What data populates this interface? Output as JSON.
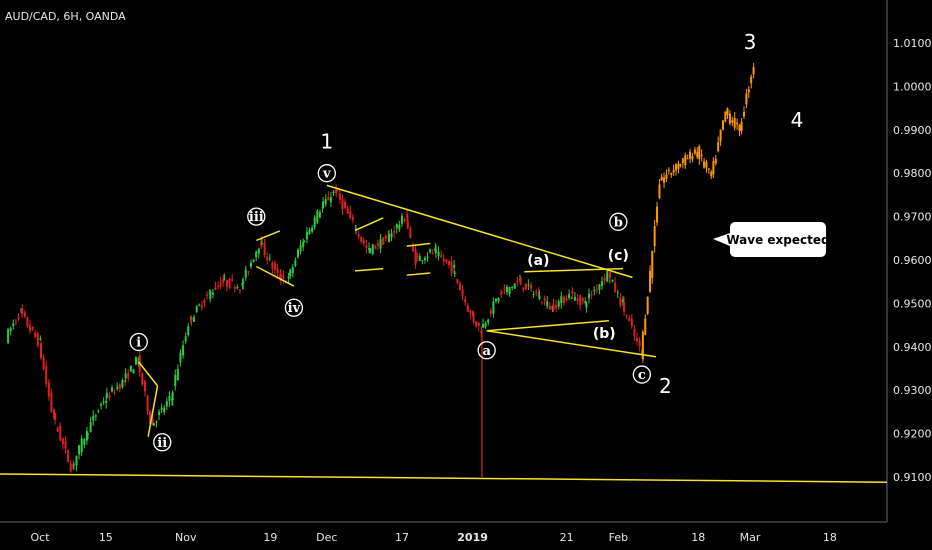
{
  "title": "AUD/CAD, 6H, OANDA",
  "callout": "Wave expected",
  "colors": {
    "background": "#000000",
    "up": "#2ecc40",
    "down": "#e02020",
    "projection": "#ff9900",
    "trendline": "#f5e22a",
    "text": "#e6e6e6"
  },
  "chart_data": {
    "type": "candlestick",
    "title": "AUD/CAD, 6H, OANDA",
    "xlabel": "",
    "ylabel": "",
    "ylim": [
      0.9075,
      1.0145
    ],
    "y_ticks": [
      "1.01000",
      "1.00000",
      "0.99000",
      "0.98000",
      "0.97000",
      "0.96000",
      "0.95000",
      "0.94000",
      "0.93000",
      "0.92000",
      "0.91000"
    ],
    "x_ticks": [
      "Oct",
      "15",
      "Nov",
      "19",
      "Dec",
      "17",
      "2019",
      "21",
      "Feb",
      "18",
      "Mar",
      "18"
    ],
    "grid": false,
    "price_path": [
      [
        "2018-09-24",
        0.942
      ],
      [
        "2018-09-27",
        0.948
      ],
      [
        "2018-10-01",
        0.941
      ],
      [
        "2018-10-04",
        0.924
      ],
      [
        "2018-10-08",
        0.912
      ],
      [
        "2018-10-11",
        0.92
      ],
      [
        "2018-10-15",
        0.928
      ],
      [
        "2018-10-19",
        0.932
      ],
      [
        "2018-10-22",
        0.937
      ],
      [
        "2018-10-25",
        0.922
      ],
      [
        "2018-10-29",
        0.928
      ],
      [
        "2018-11-02",
        0.946
      ],
      [
        "2018-11-06",
        0.952
      ],
      [
        "2018-11-09",
        0.955
      ],
      [
        "2018-11-13",
        0.954
      ],
      [
        "2018-11-17",
        0.964
      ],
      [
        "2018-11-21",
        0.956
      ],
      [
        "2018-11-23",
        0.9555
      ],
      [
        "2018-11-26",
        0.964
      ],
      [
        "2018-11-30",
        0.972
      ],
      [
        "2018-12-03",
        0.976
      ],
      [
        "2018-12-07",
        0.968
      ],
      [
        "2018-12-10",
        0.962
      ],
      [
        "2018-12-14",
        0.965
      ],
      [
        "2018-12-18",
        0.97
      ],
      [
        "2018-12-20",
        0.96
      ],
      [
        "2018-12-24",
        0.962
      ],
      [
        "2018-12-28",
        0.958
      ],
      [
        "2019-01-01",
        0.947
      ],
      [
        "2019-01-03",
        0.944
      ],
      [
        "2019-01-07",
        0.952
      ],
      [
        "2019-01-11",
        0.955
      ],
      [
        "2019-01-15",
        0.952
      ],
      [
        "2019-01-18",
        0.949
      ],
      [
        "2019-01-22",
        0.952
      ],
      [
        "2019-01-25",
        0.95
      ],
      [
        "2019-01-30",
        0.957
      ],
      [
        "2019-02-02",
        0.95
      ],
      [
        "2019-02-06",
        0.939
      ]
    ],
    "projection_path": [
      [
        "2019-02-06",
        0.938
      ],
      [
        "2019-02-08",
        0.957
      ],
      [
        "2019-02-10",
        0.978
      ],
      [
        "2019-02-14",
        0.982
      ],
      [
        "2019-02-18",
        0.985
      ],
      [
        "2019-02-21",
        0.979
      ],
      [
        "2019-02-24",
        0.994
      ],
      [
        "2019-02-27",
        0.99
      ],
      [
        "2019-03-02",
        1.005
      ]
    ],
    "spike": {
      "date": "2019-01-03",
      "low": 0.91
    },
    "support_line": {
      "from": [
        "2018-09-24",
        0.9107
      ],
      "to": [
        "2019-03-31",
        0.9088
      ]
    },
    "wave_labels": [
      {
        "text": "1",
        "date": "2018-12-01",
        "price": 0.9857,
        "style": "big"
      },
      {
        "text": "2",
        "date": "2019-02-11",
        "price": 0.9293,
        "style": "big"
      },
      {
        "text": "3",
        "date": "2019-03-01",
        "price": 1.0086,
        "style": "big"
      },
      {
        "text": "4",
        "date": "2019-03-11",
        "price": 0.9906,
        "style": "big"
      }
    ],
    "circled_labels": [
      {
        "text": "i",
        "date": "2018-10-22",
        "price": 0.9411
      },
      {
        "text": "ii",
        "date": "2018-10-27",
        "price": 0.918
      },
      {
        "text": "iii",
        "date": "2018-11-16",
        "price": 0.97
      },
      {
        "text": "iv",
        "date": "2018-11-24",
        "price": 0.949
      },
      {
        "text": "v",
        "date": "2018-12-01",
        "price": 0.98
      },
      {
        "text": "a",
        "date": "2019-01-04",
        "price": 0.9392
      },
      {
        "text": "b",
        "date": "2019-02-01",
        "price": 0.9688
      },
      {
        "text": "c",
        "date": "2019-02-06",
        "price": 0.9336
      }
    ],
    "paren_labels": [
      {
        "text": "(a)",
        "date": "2019-01-15",
        "price": 0.9589
      },
      {
        "text": "(c)",
        "date": "2019-02-01",
        "price": 0.96
      },
      {
        "text": "(b)",
        "date": "2019-01-29",
        "price": 0.942
      }
    ],
    "trendlines": [
      {
        "from": [
          "2018-12-01",
          0.9772
        ],
        "to": [
          "2019-02-04",
          0.956
        ]
      },
      {
        "from": [
          "2019-01-04",
          0.9437
        ],
        "to": [
          "2019-02-09",
          0.9377
        ]
      },
      {
        "from": [
          "2019-01-04",
          0.9437
        ],
        "to": [
          "2019-01-30",
          0.946
        ]
      },
      {
        "from": [
          "2019-01-12",
          0.9573
        ],
        "to": [
          "2019-02-02",
          0.958
        ]
      },
      {
        "from": [
          "2018-10-22",
          0.9365
        ],
        "to": [
          "2018-10-26",
          0.931
        ]
      },
      {
        "from": [
          "2018-10-24",
          0.9193
        ],
        "to": [
          "2018-10-26",
          0.931
        ]
      },
      {
        "from": [
          "2018-11-16",
          0.9645
        ],
        "to": [
          "2018-11-21",
          0.9667
        ]
      },
      {
        "from": [
          "2018-11-16",
          0.9585
        ],
        "to": [
          "2018-11-24",
          0.954
        ]
      },
      {
        "from": [
          "2018-12-07",
          0.9668
        ],
        "to": [
          "2018-12-13",
          0.9697
        ]
      },
      {
        "from": [
          "2018-12-07",
          0.9575
        ],
        "to": [
          "2018-12-13",
          0.958
        ]
      },
      {
        "from": [
          "2018-12-18",
          0.9632
        ],
        "to": [
          "2018-12-23",
          0.9638
        ]
      },
      {
        "from": [
          "2018-12-18",
          0.9565
        ],
        "to": [
          "2018-12-23",
          0.957
        ]
      }
    ]
  }
}
